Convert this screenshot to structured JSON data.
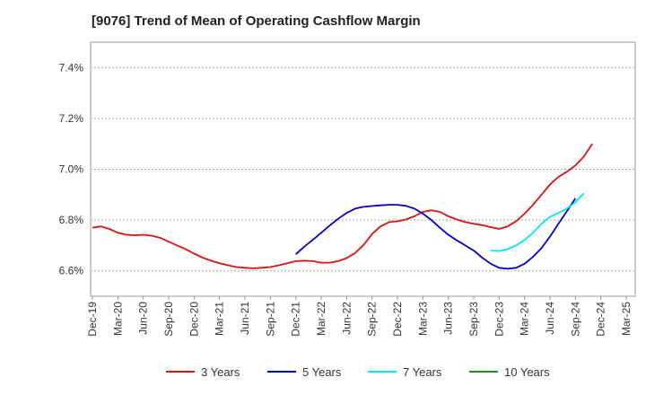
{
  "chart_data": {
    "type": "line",
    "title": "[9076]  Trend of Mean of Operating Cashflow Margin",
    "xlabel": "",
    "ylabel": "",
    "x_ticks": [
      "Dec-19",
      "Mar-20",
      "Jun-20",
      "Sep-20",
      "Dec-20",
      "Mar-21",
      "Jun-21",
      "Sep-21",
      "Dec-21",
      "Mar-22",
      "Jun-22",
      "Sep-22",
      "Dec-22",
      "Mar-23",
      "Jun-23",
      "Sep-23",
      "Dec-23",
      "Mar-24",
      "Jun-24",
      "Sep-24",
      "Dec-24",
      "Mar-25"
    ],
    "y_ticks": [
      {
        "value": 6.6,
        "label": "6.6%"
      },
      {
        "value": 6.8,
        "label": "6.8%"
      },
      {
        "value": 7.0,
        "label": "7.0%"
      },
      {
        "value": 7.2,
        "label": "7.2%"
      },
      {
        "value": 7.4,
        "label": "7.4%"
      }
    ],
    "ylim": [
      6.5,
      7.5
    ],
    "grid": "horizontal-dashed",
    "legend_position": "bottom",
    "series": [
      {
        "name": "3 Years",
        "color": "#dd1111",
        "points": [
          [
            "Dec-19",
            6.77
          ],
          [
            "Jan-20",
            6.775
          ],
          [
            "Feb-20",
            6.765
          ],
          [
            "Mar-20",
            6.75
          ],
          [
            "Apr-20",
            6.742
          ],
          [
            "May-20",
            6.74
          ],
          [
            "Jun-20",
            6.742
          ],
          [
            "Jul-20",
            6.738
          ],
          [
            "Aug-20",
            6.73
          ],
          [
            "Sep-20",
            6.715
          ],
          [
            "Oct-20",
            6.7
          ],
          [
            "Nov-20",
            6.685
          ],
          [
            "Dec-20",
            6.668
          ],
          [
            "Jan-21",
            6.652
          ],
          [
            "Feb-21",
            6.64
          ],
          [
            "Mar-21",
            6.63
          ],
          [
            "Apr-21",
            6.622
          ],
          [
            "May-21",
            6.615
          ],
          [
            "Jun-21",
            6.612
          ],
          [
            "Jul-21",
            6.61
          ],
          [
            "Aug-21",
            6.612
          ],
          [
            "Sep-21",
            6.615
          ],
          [
            "Oct-21",
            6.622
          ],
          [
            "Nov-21",
            6.63
          ],
          [
            "Dec-21",
            6.638
          ],
          [
            "Jan-22",
            6.64
          ],
          [
            "Feb-22",
            6.638
          ],
          [
            "Mar-22",
            6.632
          ],
          [
            "Apr-22",
            6.632
          ],
          [
            "May-22",
            6.638
          ],
          [
            "Jun-22",
            6.65
          ],
          [
            "Jul-22",
            6.67
          ],
          [
            "Aug-22",
            6.702
          ],
          [
            "Sep-22",
            6.745
          ],
          [
            "Oct-22",
            6.775
          ],
          [
            "Nov-22",
            6.792
          ],
          [
            "Dec-22",
            6.795
          ],
          [
            "Jan-23",
            6.802
          ],
          [
            "Feb-23",
            6.815
          ],
          [
            "Mar-23",
            6.832
          ],
          [
            "Apr-23",
            6.838
          ],
          [
            "May-23",
            6.832
          ],
          [
            "Jun-23",
            6.815
          ],
          [
            "Jul-23",
            6.802
          ],
          [
            "Aug-23",
            6.792
          ],
          [
            "Sep-23",
            6.785
          ],
          [
            "Oct-23",
            6.78
          ],
          [
            "Nov-23",
            6.772
          ],
          [
            "Dec-23",
            6.765
          ],
          [
            "Jan-24",
            6.775
          ],
          [
            "Feb-24",
            6.795
          ],
          [
            "Mar-24",
            6.825
          ],
          [
            "Apr-24",
            6.86
          ],
          [
            "May-24",
            6.9
          ],
          [
            "Jun-24",
            6.94
          ],
          [
            "Jul-24",
            6.97
          ],
          [
            "Aug-24",
            6.99
          ],
          [
            "Sep-24",
            7.015
          ],
          [
            "Oct-24",
            7.05
          ],
          [
            "Nov-24",
            7.1
          ]
        ]
      },
      {
        "name": "5 Years",
        "color": "#0000cc",
        "points": [
          [
            "Dec-21",
            6.665
          ],
          [
            "Jan-22",
            6.695
          ],
          [
            "Feb-22",
            6.722
          ],
          [
            "Mar-22",
            6.75
          ],
          [
            "Apr-22",
            6.778
          ],
          [
            "May-22",
            6.805
          ],
          [
            "Jun-22",
            6.828
          ],
          [
            "Jul-22",
            6.845
          ],
          [
            "Aug-22",
            6.852
          ],
          [
            "Sep-22",
            6.855
          ],
          [
            "Oct-22",
            6.858
          ],
          [
            "Nov-22",
            6.86
          ],
          [
            "Dec-22",
            6.86
          ],
          [
            "Jan-23",
            6.856
          ],
          [
            "Feb-23",
            6.845
          ],
          [
            "Mar-23",
            6.825
          ],
          [
            "Apr-23",
            6.8
          ],
          [
            "May-23",
            6.77
          ],
          [
            "Jun-23",
            6.742
          ],
          [
            "Jul-23",
            6.72
          ],
          [
            "Aug-23",
            6.7
          ],
          [
            "Sep-23",
            6.68
          ],
          [
            "Oct-23",
            6.652
          ],
          [
            "Nov-23",
            6.628
          ],
          [
            "Dec-23",
            6.612
          ],
          [
            "Jan-24",
            6.608
          ],
          [
            "Feb-24",
            6.612
          ],
          [
            "Mar-24",
            6.628
          ],
          [
            "Apr-24",
            6.655
          ],
          [
            "May-24",
            6.69
          ],
          [
            "Jun-24",
            6.735
          ],
          [
            "Jul-24",
            6.785
          ],
          [
            "Aug-24",
            6.835
          ],
          [
            "Sep-24",
            6.885
          ]
        ]
      },
      {
        "name": "7 Years",
        "color": "#00e5ee",
        "points": [
          [
            "Nov-23",
            6.68
          ],
          [
            "Dec-23",
            6.678
          ],
          [
            "Jan-24",
            6.685
          ],
          [
            "Feb-24",
            6.7
          ],
          [
            "Mar-24",
            6.722
          ],
          [
            "Apr-24",
            6.75
          ],
          [
            "May-24",
            6.785
          ],
          [
            "Jun-24",
            6.812
          ],
          [
            "Jul-24",
            6.828
          ],
          [
            "Aug-24",
            6.845
          ],
          [
            "Sep-24",
            6.87
          ],
          [
            "Oct-24",
            6.905
          ]
        ]
      },
      {
        "name": "10 Years",
        "color": "#228b22",
        "points": []
      }
    ]
  }
}
